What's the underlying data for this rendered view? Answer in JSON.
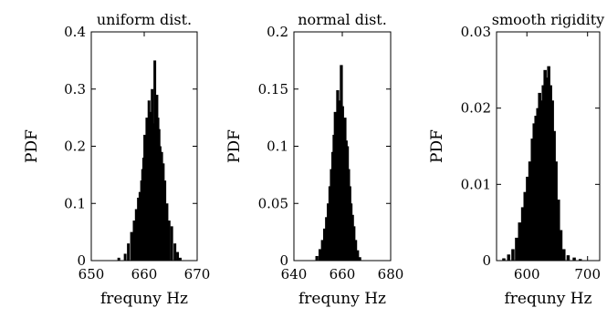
{
  "chart_data": [
    {
      "type": "bar",
      "title": "uniform dist.",
      "xlabel": "frequny Hz",
      "ylabel": "PDF",
      "xlim": [
        650,
        670
      ],
      "ylim": [
        0,
        0.4
      ],
      "xticks": [
        650,
        660,
        670
      ],
      "yticks": [
        0,
        0.1,
        0.2,
        0.3,
        0.4
      ],
      "grid": false,
      "x": [
        655.2,
        656.4,
        657.0,
        657.6,
        658.1,
        658.5,
        658.9,
        659.2,
        659.5,
        659.7,
        659.9,
        660.1,
        660.3,
        660.5,
        660.7,
        660.9,
        661.1,
        661.3,
        661.5,
        661.8,
        662.0,
        662.2,
        662.4,
        662.6,
        662.8,
        663.0,
        663.3,
        663.6,
        663.9,
        664.3,
        664.7,
        665.2,
        665.8,
        666.3,
        666.8
      ],
      "values": [
        0.005,
        0.012,
        0.03,
        0.05,
        0.07,
        0.09,
        0.11,
        0.12,
        0.14,
        0.16,
        0.18,
        0.22,
        0.2,
        0.25,
        0.21,
        0.28,
        0.23,
        0.26,
        0.3,
        0.24,
        0.35,
        0.27,
        0.29,
        0.25,
        0.23,
        0.2,
        0.19,
        0.17,
        0.14,
        0.1,
        0.07,
        0.06,
        0.03,
        0.015,
        0.005
      ]
    },
    {
      "type": "bar",
      "title": "normal dist.",
      "xlabel": "frequny Hz",
      "ylabel": "PDF",
      "xlim": [
        640,
        680
      ],
      "ylim": [
        0,
        0.2
      ],
      "xticks": [
        640,
        660,
        680
      ],
      "yticks": [
        0,
        0.05,
        0.1,
        0.15,
        0.2
      ],
      "grid": false,
      "x": [
        649.5,
        650.8,
        651.8,
        652.7,
        653.5,
        654.2,
        654.9,
        655.5,
        656.1,
        656.6,
        657.1,
        657.6,
        658.1,
        658.6,
        659.1,
        659.6,
        660.1,
        660.6,
        661.1,
        661.6,
        662.1,
        662.6,
        663.1,
        663.6,
        664.2,
        664.8,
        665.5,
        666.3,
        667.2
      ],
      "values": [
        0.004,
        0.01,
        0.018,
        0.028,
        0.038,
        0.05,
        0.065,
        0.08,
        0.095,
        0.11,
        0.13,
        0.12,
        0.149,
        0.13,
        0.14,
        0.171,
        0.135,
        0.12,
        0.125,
        0.105,
        0.1,
        0.08,
        0.065,
        0.05,
        0.04,
        0.03,
        0.018,
        0.009,
        0.003
      ]
    },
    {
      "type": "bar",
      "title": "smooth rigidity",
      "xlabel": "frequny Hz",
      "ylabel": "PDF",
      "xlim": [
        550,
        720
      ],
      "ylim": [
        0,
        0.03
      ],
      "xticks": [
        600,
        700
      ],
      "yticks": [
        0,
        0.01,
        0.02,
        0.03
      ],
      "grid": false,
      "x": [
        562,
        570,
        577,
        583,
        588,
        593,
        597,
        601,
        605,
        609,
        612,
        615,
        618,
        621,
        624,
        627,
        630,
        633,
        636,
        639,
        642,
        645,
        648,
        652,
        656,
        661,
        668,
        678,
        688
      ],
      "values": [
        0.0003,
        0.0008,
        0.0015,
        0.003,
        0.005,
        0.007,
        0.009,
        0.011,
        0.013,
        0.016,
        0.018,
        0.019,
        0.02,
        0.022,
        0.021,
        0.023,
        0.025,
        0.024,
        0.0255,
        0.023,
        0.021,
        0.017,
        0.013,
        0.008,
        0.004,
        0.0015,
        0.0007,
        0.0004,
        0.0002
      ]
    }
  ]
}
